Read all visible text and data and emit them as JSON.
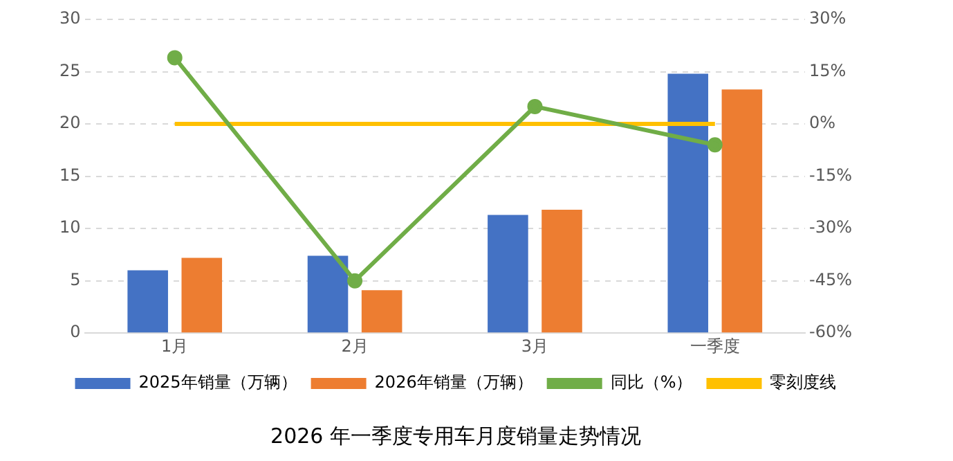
{
  "chart_data": {
    "type": "bar",
    "title": "2026 年一季度专用车月度销量走势情况",
    "categories": [
      "1月",
      "2月",
      "3月",
      "一季度"
    ],
    "series": [
      {
        "name": "2025年销量（万辆）",
        "color": "#4472c4",
        "values": [
          6.0,
          7.4,
          11.3,
          24.8
        ]
      },
      {
        "name": "2026年销量（万辆）",
        "color": "#ed7d31",
        "values": [
          7.2,
          4.1,
          11.8,
          23.3
        ]
      },
      {
        "name": "同比（%）",
        "type": "line",
        "axis": "y2",
        "color": "#70ad47",
        "marker": "circle",
        "values": [
          19,
          -45,
          5,
          -6
        ]
      },
      {
        "name": "零刻度线",
        "type": "line",
        "axis": "y2",
        "color": "#ffc000",
        "marker": "none",
        "values": [
          0,
          0,
          0,
          0
        ]
      }
    ],
    "ylim": [
      0,
      30
    ],
    "yticks": [
      0,
      5,
      10,
      15,
      20,
      25,
      30
    ],
    "y2lim": [
      -60,
      30
    ],
    "y2ticks": [
      {
        "value": -60,
        "label": "-60%"
      },
      {
        "value": -45,
        "label": "-45%"
      },
      {
        "value": -30,
        "label": "-30%"
      },
      {
        "value": -15,
        "label": "-15%"
      },
      {
        "value": 0,
        "label": "0%"
      },
      {
        "value": 15,
        "label": "15%"
      },
      {
        "value": 30,
        "label": "30%"
      }
    ],
    "grid": "y",
    "legend": "bottom"
  }
}
